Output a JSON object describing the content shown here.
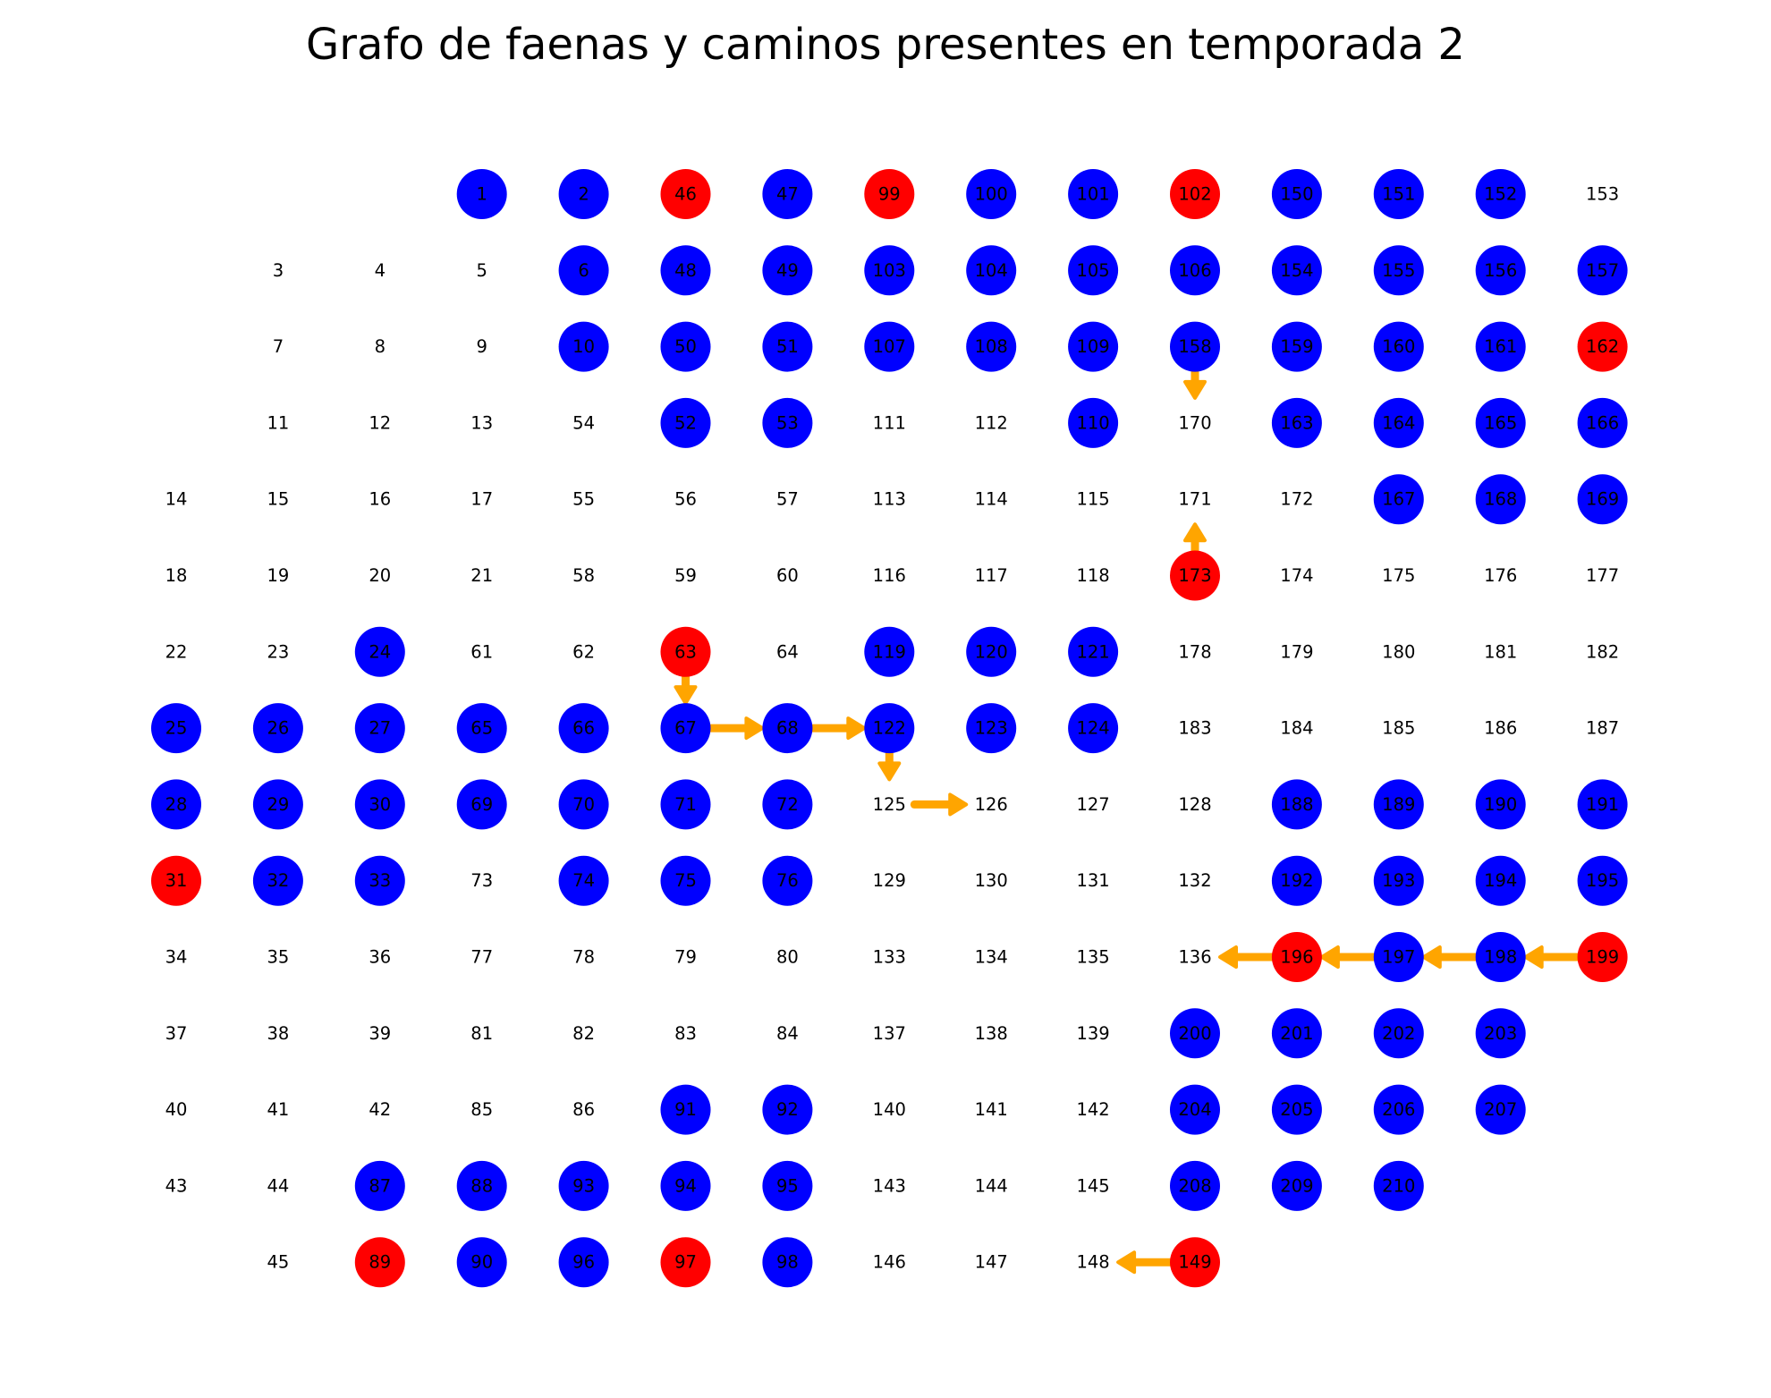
{
  "title": "Grafo de faenas y caminos presentes en temporada 2",
  "colors": {
    "blue": "#0000ff",
    "red": "#ff0000",
    "edge": "#ffa500",
    "label": "#000000"
  },
  "nodes": [
    {
      "id": "1",
      "row": 0,
      "col": 3,
      "c": "blue"
    },
    {
      "id": "2",
      "row": 0,
      "col": 4,
      "c": "blue"
    },
    {
      "id": "46",
      "row": 0,
      "col": 5,
      "c": "red"
    },
    {
      "id": "47",
      "row": 0,
      "col": 6,
      "c": "blue"
    },
    {
      "id": "99",
      "row": 0,
      "col": 7,
      "c": "red"
    },
    {
      "id": "100",
      "row": 0,
      "col": 8,
      "c": "blue"
    },
    {
      "id": "101",
      "row": 0,
      "col": 9,
      "c": "blue"
    },
    {
      "id": "102",
      "row": 0,
      "col": 10,
      "c": "red"
    },
    {
      "id": "150",
      "row": 0,
      "col": 11,
      "c": "blue"
    },
    {
      "id": "151",
      "row": 0,
      "col": 12,
      "c": "blue"
    },
    {
      "id": "152",
      "row": 0,
      "col": 13,
      "c": "blue"
    },
    {
      "id": "153",
      "row": 0,
      "col": 14,
      "c": "none"
    },
    {
      "id": "3",
      "row": 1,
      "col": 1,
      "c": "none"
    },
    {
      "id": "4",
      "row": 1,
      "col": 2,
      "c": "none"
    },
    {
      "id": "5",
      "row": 1,
      "col": 3,
      "c": "none"
    },
    {
      "id": "6",
      "row": 1,
      "col": 4,
      "c": "blue"
    },
    {
      "id": "48",
      "row": 1,
      "col": 5,
      "c": "blue"
    },
    {
      "id": "49",
      "row": 1,
      "col": 6,
      "c": "blue"
    },
    {
      "id": "103",
      "row": 1,
      "col": 7,
      "c": "blue"
    },
    {
      "id": "104",
      "row": 1,
      "col": 8,
      "c": "blue"
    },
    {
      "id": "105",
      "row": 1,
      "col": 9,
      "c": "blue"
    },
    {
      "id": "106",
      "row": 1,
      "col": 10,
      "c": "blue"
    },
    {
      "id": "154",
      "row": 1,
      "col": 11,
      "c": "blue"
    },
    {
      "id": "155",
      "row": 1,
      "col": 12,
      "c": "blue"
    },
    {
      "id": "156",
      "row": 1,
      "col": 13,
      "c": "blue"
    },
    {
      "id": "157",
      "row": 1,
      "col": 14,
      "c": "blue"
    },
    {
      "id": "7",
      "row": 2,
      "col": 1,
      "c": "none"
    },
    {
      "id": "8",
      "row": 2,
      "col": 2,
      "c": "none"
    },
    {
      "id": "9",
      "row": 2,
      "col": 3,
      "c": "none"
    },
    {
      "id": "10",
      "row": 2,
      "col": 4,
      "c": "blue"
    },
    {
      "id": "50",
      "row": 2,
      "col": 5,
      "c": "blue"
    },
    {
      "id": "51",
      "row": 2,
      "col": 6,
      "c": "blue"
    },
    {
      "id": "107",
      "row": 2,
      "col": 7,
      "c": "blue"
    },
    {
      "id": "108",
      "row": 2,
      "col": 8,
      "c": "blue"
    },
    {
      "id": "109",
      "row": 2,
      "col": 9,
      "c": "blue"
    },
    {
      "id": "158",
      "row": 2,
      "col": 10,
      "c": "blue"
    },
    {
      "id": "159",
      "row": 2,
      "col": 11,
      "c": "blue"
    },
    {
      "id": "160",
      "row": 2,
      "col": 12,
      "c": "blue"
    },
    {
      "id": "161",
      "row": 2,
      "col": 13,
      "c": "blue"
    },
    {
      "id": "162",
      "row": 2,
      "col": 14,
      "c": "red"
    },
    {
      "id": "11",
      "row": 3,
      "col": 1,
      "c": "none"
    },
    {
      "id": "12",
      "row": 3,
      "col": 2,
      "c": "none"
    },
    {
      "id": "13",
      "row": 3,
      "col": 3,
      "c": "none"
    },
    {
      "id": "54",
      "row": 3,
      "col": 4,
      "c": "none"
    },
    {
      "id": "52",
      "row": 3,
      "col": 5,
      "c": "blue"
    },
    {
      "id": "53",
      "row": 3,
      "col": 6,
      "c": "blue"
    },
    {
      "id": "111",
      "row": 3,
      "col": 7,
      "c": "none"
    },
    {
      "id": "112",
      "row": 3,
      "col": 8,
      "c": "none"
    },
    {
      "id": "110",
      "row": 3,
      "col": 9,
      "c": "blue"
    },
    {
      "id": "170",
      "row": 3,
      "col": 10,
      "c": "none"
    },
    {
      "id": "163",
      "row": 3,
      "col": 11,
      "c": "blue"
    },
    {
      "id": "164",
      "row": 3,
      "col": 12,
      "c": "blue"
    },
    {
      "id": "165",
      "row": 3,
      "col": 13,
      "c": "blue"
    },
    {
      "id": "166",
      "row": 3,
      "col": 14,
      "c": "blue"
    },
    {
      "id": "14",
      "row": 4,
      "col": 0,
      "c": "none"
    },
    {
      "id": "15",
      "row": 4,
      "col": 1,
      "c": "none"
    },
    {
      "id": "16",
      "row": 4,
      "col": 2,
      "c": "none"
    },
    {
      "id": "17",
      "row": 4,
      "col": 3,
      "c": "none"
    },
    {
      "id": "55",
      "row": 4,
      "col": 4,
      "c": "none"
    },
    {
      "id": "56",
      "row": 4,
      "col": 5,
      "c": "none"
    },
    {
      "id": "57",
      "row": 4,
      "col": 6,
      "c": "none"
    },
    {
      "id": "113",
      "row": 4,
      "col": 7,
      "c": "none"
    },
    {
      "id": "114",
      "row": 4,
      "col": 8,
      "c": "none"
    },
    {
      "id": "115",
      "row": 4,
      "col": 9,
      "c": "none"
    },
    {
      "id": "171",
      "row": 4,
      "col": 10,
      "c": "none"
    },
    {
      "id": "172",
      "row": 4,
      "col": 11,
      "c": "none"
    },
    {
      "id": "167",
      "row": 4,
      "col": 12,
      "c": "blue"
    },
    {
      "id": "168",
      "row": 4,
      "col": 13,
      "c": "blue"
    },
    {
      "id": "169",
      "row": 4,
      "col": 14,
      "c": "blue"
    },
    {
      "id": "18",
      "row": 5,
      "col": 0,
      "c": "none"
    },
    {
      "id": "19",
      "row": 5,
      "col": 1,
      "c": "none"
    },
    {
      "id": "20",
      "row": 5,
      "col": 2,
      "c": "none"
    },
    {
      "id": "21",
      "row": 5,
      "col": 3,
      "c": "none"
    },
    {
      "id": "58",
      "row": 5,
      "col": 4,
      "c": "none"
    },
    {
      "id": "59",
      "row": 5,
      "col": 5,
      "c": "none"
    },
    {
      "id": "60",
      "row": 5,
      "col": 6,
      "c": "none"
    },
    {
      "id": "116",
      "row": 5,
      "col": 7,
      "c": "none"
    },
    {
      "id": "117",
      "row": 5,
      "col": 8,
      "c": "none"
    },
    {
      "id": "118",
      "row": 5,
      "col": 9,
      "c": "none"
    },
    {
      "id": "173",
      "row": 5,
      "col": 10,
      "c": "red"
    },
    {
      "id": "174",
      "row": 5,
      "col": 11,
      "c": "none"
    },
    {
      "id": "175",
      "row": 5,
      "col": 12,
      "c": "none"
    },
    {
      "id": "176",
      "row": 5,
      "col": 13,
      "c": "none"
    },
    {
      "id": "177",
      "row": 5,
      "col": 14,
      "c": "none"
    },
    {
      "id": "22",
      "row": 6,
      "col": 0,
      "c": "none"
    },
    {
      "id": "23",
      "row": 6,
      "col": 1,
      "c": "none"
    },
    {
      "id": "24",
      "row": 6,
      "col": 2,
      "c": "blue"
    },
    {
      "id": "61",
      "row": 6,
      "col": 3,
      "c": "none"
    },
    {
      "id": "62",
      "row": 6,
      "col": 4,
      "c": "none"
    },
    {
      "id": "63",
      "row": 6,
      "col": 5,
      "c": "red"
    },
    {
      "id": "64",
      "row": 6,
      "col": 6,
      "c": "none"
    },
    {
      "id": "119",
      "row": 6,
      "col": 7,
      "c": "blue"
    },
    {
      "id": "120",
      "row": 6,
      "col": 8,
      "c": "blue"
    },
    {
      "id": "121",
      "row": 6,
      "col": 9,
      "c": "blue"
    },
    {
      "id": "178",
      "row": 6,
      "col": 10,
      "c": "none"
    },
    {
      "id": "179",
      "row": 6,
      "col": 11,
      "c": "none"
    },
    {
      "id": "180",
      "row": 6,
      "col": 12,
      "c": "none"
    },
    {
      "id": "181",
      "row": 6,
      "col": 13,
      "c": "none"
    },
    {
      "id": "182",
      "row": 6,
      "col": 14,
      "c": "none"
    },
    {
      "id": "25",
      "row": 7,
      "col": 0,
      "c": "blue"
    },
    {
      "id": "26",
      "row": 7,
      "col": 1,
      "c": "blue"
    },
    {
      "id": "27",
      "row": 7,
      "col": 2,
      "c": "blue"
    },
    {
      "id": "65",
      "row": 7,
      "col": 3,
      "c": "blue"
    },
    {
      "id": "66",
      "row": 7,
      "col": 4,
      "c": "blue"
    },
    {
      "id": "67",
      "row": 7,
      "col": 5,
      "c": "blue"
    },
    {
      "id": "68",
      "row": 7,
      "col": 6,
      "c": "blue"
    },
    {
      "id": "122",
      "row": 7,
      "col": 7,
      "c": "blue"
    },
    {
      "id": "123",
      "row": 7,
      "col": 8,
      "c": "blue"
    },
    {
      "id": "124",
      "row": 7,
      "col": 9,
      "c": "blue"
    },
    {
      "id": "183",
      "row": 7,
      "col": 10,
      "c": "none"
    },
    {
      "id": "184",
      "row": 7,
      "col": 11,
      "c": "none"
    },
    {
      "id": "185",
      "row": 7,
      "col": 12,
      "c": "none"
    },
    {
      "id": "186",
      "row": 7,
      "col": 13,
      "c": "none"
    },
    {
      "id": "187",
      "row": 7,
      "col": 14,
      "c": "none"
    },
    {
      "id": "28",
      "row": 8,
      "col": 0,
      "c": "blue"
    },
    {
      "id": "29",
      "row": 8,
      "col": 1,
      "c": "blue"
    },
    {
      "id": "30",
      "row": 8,
      "col": 2,
      "c": "blue"
    },
    {
      "id": "69",
      "row": 8,
      "col": 3,
      "c": "blue"
    },
    {
      "id": "70",
      "row": 8,
      "col": 4,
      "c": "blue"
    },
    {
      "id": "71",
      "row": 8,
      "col": 5,
      "c": "blue"
    },
    {
      "id": "72",
      "row": 8,
      "col": 6,
      "c": "blue"
    },
    {
      "id": "125",
      "row": 8,
      "col": 7,
      "c": "none"
    },
    {
      "id": "126",
      "row": 8,
      "col": 8,
      "c": "none"
    },
    {
      "id": "127",
      "row": 8,
      "col": 9,
      "c": "none"
    },
    {
      "id": "128",
      "row": 8,
      "col": 10,
      "c": "none"
    },
    {
      "id": "188",
      "row": 8,
      "col": 11,
      "c": "blue"
    },
    {
      "id": "189",
      "row": 8,
      "col": 12,
      "c": "blue"
    },
    {
      "id": "190",
      "row": 8,
      "col": 13,
      "c": "blue"
    },
    {
      "id": "191",
      "row": 8,
      "col": 14,
      "c": "blue"
    },
    {
      "id": "31",
      "row": 9,
      "col": 0,
      "c": "red"
    },
    {
      "id": "32",
      "row": 9,
      "col": 1,
      "c": "blue"
    },
    {
      "id": "33",
      "row": 9,
      "col": 2,
      "c": "blue"
    },
    {
      "id": "73",
      "row": 9,
      "col": 3,
      "c": "none"
    },
    {
      "id": "74",
      "row": 9,
      "col": 4,
      "c": "blue"
    },
    {
      "id": "75",
      "row": 9,
      "col": 5,
      "c": "blue"
    },
    {
      "id": "76",
      "row": 9,
      "col": 6,
      "c": "blue"
    },
    {
      "id": "129",
      "row": 9,
      "col": 7,
      "c": "none"
    },
    {
      "id": "130",
      "row": 9,
      "col": 8,
      "c": "none"
    },
    {
      "id": "131",
      "row": 9,
      "col": 9,
      "c": "none"
    },
    {
      "id": "132",
      "row": 9,
      "col": 10,
      "c": "none"
    },
    {
      "id": "192",
      "row": 9,
      "col": 11,
      "c": "blue"
    },
    {
      "id": "193",
      "row": 9,
      "col": 12,
      "c": "blue"
    },
    {
      "id": "194",
      "row": 9,
      "col": 13,
      "c": "blue"
    },
    {
      "id": "195",
      "row": 9,
      "col": 14,
      "c": "blue"
    },
    {
      "id": "34",
      "row": 10,
      "col": 0,
      "c": "none"
    },
    {
      "id": "35",
      "row": 10,
      "col": 1,
      "c": "none"
    },
    {
      "id": "36",
      "row": 10,
      "col": 2,
      "c": "none"
    },
    {
      "id": "77",
      "row": 10,
      "col": 3,
      "c": "none"
    },
    {
      "id": "78",
      "row": 10,
      "col": 4,
      "c": "none"
    },
    {
      "id": "79",
      "row": 10,
      "col": 5,
      "c": "none"
    },
    {
      "id": "80",
      "row": 10,
      "col": 6,
      "c": "none"
    },
    {
      "id": "133",
      "row": 10,
      "col": 7,
      "c": "none"
    },
    {
      "id": "134",
      "row": 10,
      "col": 8,
      "c": "none"
    },
    {
      "id": "135",
      "row": 10,
      "col": 9,
      "c": "none"
    },
    {
      "id": "136",
      "row": 10,
      "col": 10,
      "c": "none"
    },
    {
      "id": "196",
      "row": 10,
      "col": 11,
      "c": "red"
    },
    {
      "id": "197",
      "row": 10,
      "col": 12,
      "c": "blue"
    },
    {
      "id": "198",
      "row": 10,
      "col": 13,
      "c": "blue"
    },
    {
      "id": "199",
      "row": 10,
      "col": 14,
      "c": "red"
    },
    {
      "id": "37",
      "row": 11,
      "col": 0,
      "c": "none"
    },
    {
      "id": "38",
      "row": 11,
      "col": 1,
      "c": "none"
    },
    {
      "id": "39",
      "row": 11,
      "col": 2,
      "c": "none"
    },
    {
      "id": "81",
      "row": 11,
      "col": 3,
      "c": "none"
    },
    {
      "id": "82",
      "row": 11,
      "col": 4,
      "c": "none"
    },
    {
      "id": "83",
      "row": 11,
      "col": 5,
      "c": "none"
    },
    {
      "id": "84",
      "row": 11,
      "col": 6,
      "c": "none"
    },
    {
      "id": "137",
      "row": 11,
      "col": 7,
      "c": "none"
    },
    {
      "id": "138",
      "row": 11,
      "col": 8,
      "c": "none"
    },
    {
      "id": "139",
      "row": 11,
      "col": 9,
      "c": "none"
    },
    {
      "id": "200",
      "row": 11,
      "col": 10,
      "c": "blue"
    },
    {
      "id": "201",
      "row": 11,
      "col": 11,
      "c": "blue"
    },
    {
      "id": "202",
      "row": 11,
      "col": 12,
      "c": "blue"
    },
    {
      "id": "203",
      "row": 11,
      "col": 13,
      "c": "blue"
    },
    {
      "id": "40",
      "row": 12,
      "col": 0,
      "c": "none"
    },
    {
      "id": "41",
      "row": 12,
      "col": 1,
      "c": "none"
    },
    {
      "id": "42",
      "row": 12,
      "col": 2,
      "c": "none"
    },
    {
      "id": "85",
      "row": 12,
      "col": 3,
      "c": "none"
    },
    {
      "id": "86",
      "row": 12,
      "col": 4,
      "c": "none"
    },
    {
      "id": "91",
      "row": 12,
      "col": 5,
      "c": "blue"
    },
    {
      "id": "92",
      "row": 12,
      "col": 6,
      "c": "blue"
    },
    {
      "id": "140",
      "row": 12,
      "col": 7,
      "c": "none"
    },
    {
      "id": "141",
      "row": 12,
      "col": 8,
      "c": "none"
    },
    {
      "id": "142",
      "row": 12,
      "col": 9,
      "c": "none"
    },
    {
      "id": "204",
      "row": 12,
      "col": 10,
      "c": "blue"
    },
    {
      "id": "205",
      "row": 12,
      "col": 11,
      "c": "blue"
    },
    {
      "id": "206",
      "row": 12,
      "col": 12,
      "c": "blue"
    },
    {
      "id": "207",
      "row": 12,
      "col": 13,
      "c": "blue"
    },
    {
      "id": "43",
      "row": 13,
      "col": 0,
      "c": "none"
    },
    {
      "id": "44",
      "row": 13,
      "col": 1,
      "c": "none"
    },
    {
      "id": "87",
      "row": 13,
      "col": 2,
      "c": "blue"
    },
    {
      "id": "88",
      "row": 13,
      "col": 3,
      "c": "blue"
    },
    {
      "id": "93",
      "row": 13,
      "col": 4,
      "c": "blue"
    },
    {
      "id": "94",
      "row": 13,
      "col": 5,
      "c": "blue"
    },
    {
      "id": "95",
      "row": 13,
      "col": 6,
      "c": "blue"
    },
    {
      "id": "143",
      "row": 13,
      "col": 7,
      "c": "none"
    },
    {
      "id": "144",
      "row": 13,
      "col": 8,
      "c": "none"
    },
    {
      "id": "145",
      "row": 13,
      "col": 9,
      "c": "none"
    },
    {
      "id": "208",
      "row": 13,
      "col": 10,
      "c": "blue"
    },
    {
      "id": "209",
      "row": 13,
      "col": 11,
      "c": "blue"
    },
    {
      "id": "210",
      "row": 13,
      "col": 12,
      "c": "blue"
    },
    {
      "id": "45",
      "row": 14,
      "col": 1,
      "c": "none"
    },
    {
      "id": "89",
      "row": 14,
      "col": 2,
      "c": "red"
    },
    {
      "id": "90",
      "row": 14,
      "col": 3,
      "c": "blue"
    },
    {
      "id": "96",
      "row": 14,
      "col": 4,
      "c": "blue"
    },
    {
      "id": "97",
      "row": 14,
      "col": 5,
      "c": "red"
    },
    {
      "id": "98",
      "row": 14,
      "col": 6,
      "c": "blue"
    },
    {
      "id": "146",
      "row": 14,
      "col": 7,
      "c": "none"
    },
    {
      "id": "147",
      "row": 14,
      "col": 8,
      "c": "none"
    },
    {
      "id": "148",
      "row": 14,
      "col": 9,
      "c": "none"
    },
    {
      "id": "149",
      "row": 14,
      "col": 10,
      "c": "red"
    }
  ],
  "edges": [
    {
      "from": "63",
      "to": "67"
    },
    {
      "from": "67",
      "to": "68"
    },
    {
      "from": "68",
      "to": "122"
    },
    {
      "from": "122",
      "to": "125"
    },
    {
      "from": "125",
      "to": "126"
    },
    {
      "from": "158",
      "to": "170"
    },
    {
      "from": "173",
      "to": "171"
    },
    {
      "from": "199",
      "to": "198"
    },
    {
      "from": "198",
      "to": "197"
    },
    {
      "from": "197",
      "to": "196"
    },
    {
      "from": "196",
      "to": "136"
    },
    {
      "from": "149",
      "to": "148"
    }
  ]
}
